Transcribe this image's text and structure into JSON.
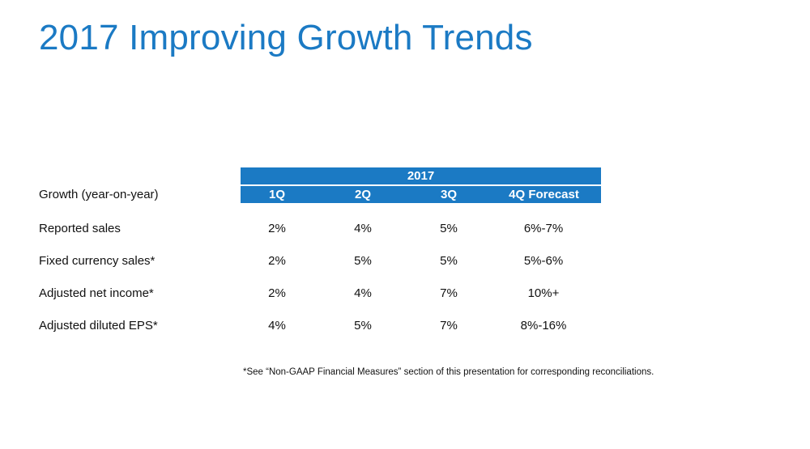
{
  "title": "2017 Improving Growth Trends",
  "table": {
    "year_header": "2017",
    "row_header": "Growth (year-on-year)",
    "columns": [
      "1Q",
      "2Q",
      "3Q",
      "4Q Forecast"
    ],
    "rows": [
      {
        "label": "Reported sales",
        "values": [
          "2%",
          "4%",
          "5%",
          "6%-7%"
        ]
      },
      {
        "label": "Fixed currency sales*",
        "values": [
          "2%",
          "5%",
          "5%",
          "5%-6%"
        ]
      },
      {
        "label": "Adjusted net income*",
        "values": [
          "2%",
          "4%",
          "7%",
          "10%+"
        ]
      },
      {
        "label": "Adjusted diluted EPS*",
        "values": [
          "4%",
          "5%",
          "7%",
          "8%-16%"
        ]
      }
    ]
  },
  "footnote": "*See “Non-GAAP Financial Measures” section of this presentation for corresponding reconciliations.",
  "colors": {
    "accent": "#1b7ac4"
  }
}
